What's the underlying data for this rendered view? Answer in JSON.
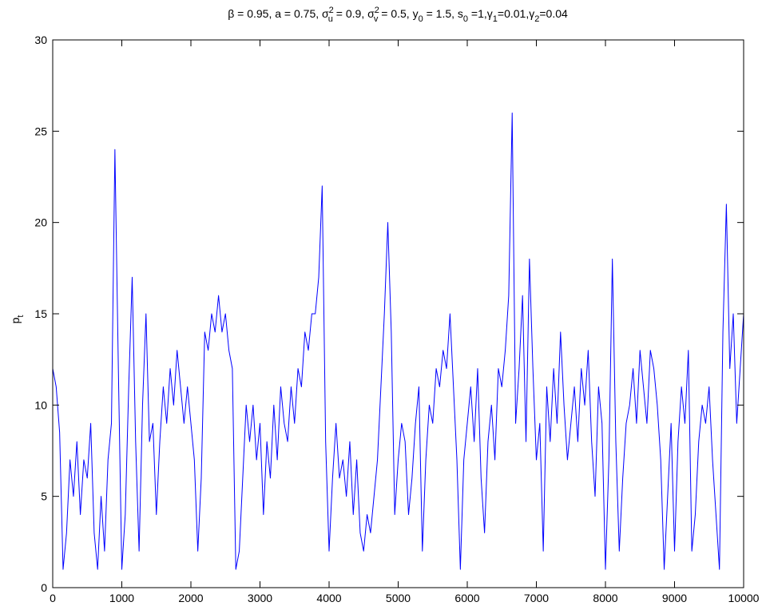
{
  "chart_data": {
    "type": "line",
    "title_parts": [
      {
        "text": "β = 0.95, a = 0.75, σ",
        "shift": "none"
      },
      {
        "text": "2",
        "shift": "sup"
      },
      {
        "text": "u",
        "shift": "sub"
      },
      {
        "text": " = 0.9, σ",
        "shift": "none"
      },
      {
        "text": "2",
        "shift": "sup"
      },
      {
        "text": "v",
        "shift": "sub"
      },
      {
        "text": " = 0.5, y",
        "shift": "none"
      },
      {
        "text": "0",
        "shift": "sub"
      },
      {
        "text": " = 1.5, s",
        "shift": "none"
      },
      {
        "text": "0",
        "shift": "sub"
      },
      {
        "text": " =1,γ",
        "shift": "none"
      },
      {
        "text": "1",
        "shift": "sub"
      },
      {
        "text": "=0.01,γ",
        "shift": "none"
      },
      {
        "text": "2",
        "shift": "sub"
      },
      {
        "text": "=0.04",
        "shift": "none"
      }
    ],
    "ylabel_parts": [
      {
        "text": "p",
        "shift": "none"
      },
      {
        "text": "t",
        "shift": "sub"
      }
    ],
    "x": [
      0,
      50,
      100,
      150,
      200,
      250,
      300,
      350,
      400,
      450,
      500,
      550,
      600,
      650,
      700,
      750,
      800,
      850,
      900,
      950,
      1000,
      1050,
      1100,
      1150,
      1200,
      1250,
      1300,
      1350,
      1400,
      1450,
      1500,
      1550,
      1600,
      1650,
      1700,
      1750,
      1800,
      1850,
      1900,
      1950,
      2000,
      2050,
      2100,
      2150,
      2200,
      2250,
      2300,
      2350,
      2400,
      2450,
      2500,
      2550,
      2600,
      2650,
      2700,
      2750,
      2800,
      2850,
      2900,
      2950,
      3000,
      3050,
      3100,
      3150,
      3200,
      3250,
      3300,
      3350,
      3400,
      3450,
      3500,
      3550,
      3600,
      3650,
      3700,
      3750,
      3800,
      3850,
      3900,
      3950,
      4000,
      4050,
      4100,
      4150,
      4200,
      4250,
      4300,
      4350,
      4400,
      4450,
      4500,
      4550,
      4600,
      4650,
      4700,
      4750,
      4800,
      4850,
      4900,
      4950,
      5000,
      5050,
      5100,
      5150,
      5200,
      5250,
      5300,
      5350,
      5400,
      5450,
      5500,
      5550,
      5600,
      5650,
      5700,
      5750,
      5800,
      5850,
      5900,
      5950,
      6000,
      6050,
      6100,
      6150,
      6200,
      6250,
      6300,
      6350,
      6400,
      6450,
      6500,
      6550,
      6600,
      6650,
      6700,
      6750,
      6800,
      6850,
      6900,
      6950,
      7000,
      7050,
      7100,
      7150,
      7200,
      7250,
      7300,
      7350,
      7400,
      7450,
      7500,
      7550,
      7600,
      7650,
      7700,
      7750,
      7800,
      7850,
      7900,
      7950,
      8000,
      8050,
      8100,
      8150,
      8200,
      8250,
      8300,
      8350,
      8400,
      8450,
      8500,
      8550,
      8600,
      8650,
      8700,
      8750,
      8800,
      8850,
      8900,
      8950,
      9000,
      9050,
      9100,
      9150,
      9200,
      9250,
      9300,
      9350,
      9400,
      9450,
      9500,
      9550,
      9600,
      9650,
      9700,
      9750,
      9800,
      9850,
      9900,
      9950,
      10000
    ],
    "series": [
      {
        "color": "#0000ff",
        "values": [
          12,
          11,
          8.5,
          1,
          3,
          7,
          5,
          8,
          4,
          7,
          6,
          9,
          3,
          1,
          5,
          2,
          7,
          9,
          24,
          12,
          1,
          4,
          11,
          17,
          8,
          2,
          10,
          15,
          8,
          9,
          4,
          8,
          11,
          9,
          12,
          10,
          13,
          11,
          9,
          11,
          9,
          7,
          2,
          6,
          14,
          13,
          15,
          14,
          16,
          14,
          15,
          13,
          12,
          1,
          2,
          6,
          10,
          8,
          10,
          7,
          9,
          4,
          8,
          6,
          10,
          7,
          11,
          9,
          8,
          11,
          9,
          12,
          11,
          14,
          13,
          15,
          15,
          17,
          22,
          8,
          2,
          6,
          9,
          6,
          7,
          5,
          8,
          4,
          7,
          3,
          2,
          4,
          3,
          5,
          7,
          11,
          15,
          20,
          14,
          4,
          7,
          9,
          8,
          4,
          6,
          9,
          11,
          2,
          7,
          10,
          9,
          12,
          11,
          13,
          12,
          15,
          11,
          7,
          1,
          7,
          9,
          11,
          8,
          12,
          6,
          3,
          8,
          10,
          7,
          12,
          11,
          13,
          16,
          26,
          9,
          12,
          16,
          8,
          18,
          12,
          7,
          9,
          2,
          11,
          8,
          12,
          9,
          14,
          10,
          7,
          9,
          11,
          8,
          12,
          10,
          13,
          8,
          5,
          11,
          9,
          1,
          7,
          18,
          8,
          2,
          6,
          9,
          10,
          12,
          9,
          13,
          11,
          9,
          13,
          12,
          10,
          7,
          1,
          5,
          9,
          2,
          8,
          11,
          9,
          13,
          2,
          4,
          8,
          10,
          9,
          11,
          7,
          4,
          1,
          14,
          21,
          12,
          15,
          9,
          12,
          15
        ]
      }
    ],
    "xlim": [
      0,
      10000
    ],
    "xticks": [
      0,
      1000,
      2000,
      3000,
      4000,
      5000,
      6000,
      7000,
      8000,
      9000,
      10000
    ],
    "ylim": [
      0,
      30
    ],
    "yticks": [
      0,
      5,
      10,
      15,
      20,
      25,
      30
    ],
    "grid": false
  }
}
